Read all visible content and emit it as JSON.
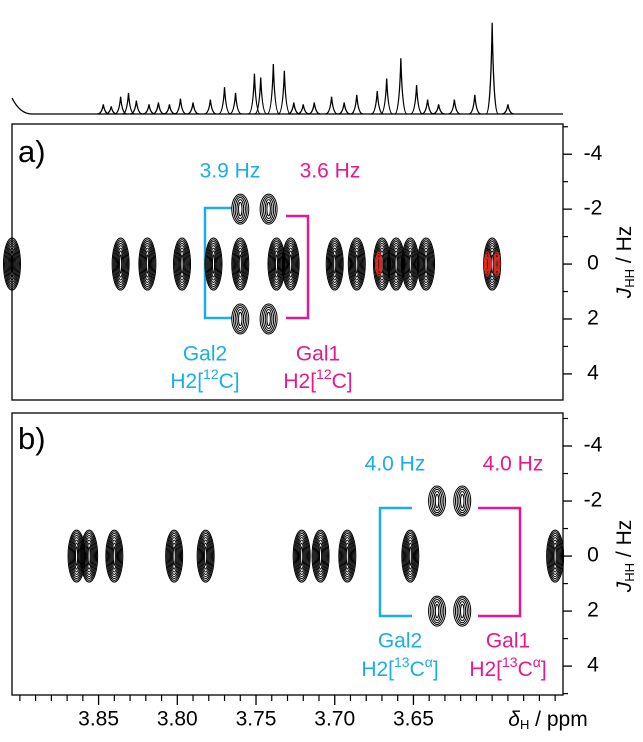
{
  "chart_data": [
    {
      "type": "spectrum",
      "x": [
        3.847,
        3.842,
        3.836,
        3.831,
        3.826,
        3.818,
        3.812,
        3.805,
        3.798,
        3.79,
        3.779,
        3.77,
        3.763,
        3.751,
        3.747,
        3.739,
        3.732,
        3.726,
        3.72,
        3.713,
        3.702,
        3.694,
        3.686,
        3.673,
        3.667,
        3.658,
        3.648,
        3.641,
        3.634,
        3.624,
        3.611,
        3.6,
        3.59
      ],
      "y": [
        10,
        8,
        18,
        22,
        14,
        10,
        12,
        10,
        16,
        12,
        15,
        28,
        22,
        42,
        38,
        52,
        45,
        12,
        10,
        12,
        18,
        12,
        20,
        24,
        37,
        58,
        30,
        15,
        10,
        15,
        20,
        95,
        10
      ],
      "ylim": [
        0,
        100
      ],
      "xlim": [
        3.905,
        3.555
      ],
      "color": "#000000"
    },
    {
      "type": "contour",
      "label": "a)",
      "xlim": [
        3.905,
        3.555
      ],
      "ylim": [
        -5.1,
        4.95
      ],
      "yticks": [
        -4,
        -2,
        0,
        2,
        4
      ],
      "yminorticks": [
        -5,
        -3,
        -1,
        1,
        3
      ],
      "ylabel": {
        "symbol": "J",
        "subscript": "HH",
        "unit": " / Hz"
      },
      "series": [
        {
          "color": "#000000",
          "x": [
            3.905,
            3.836,
            3.819,
            3.797,
            3.777,
            3.76,
            3.76,
            3.76,
            3.742,
            3.742,
            3.737,
            3.728,
            3.7,
            3.686,
            3.67,
            3.661,
            3.652,
            3.642,
            3.6
          ],
          "y": [
            0,
            0,
            0,
            0,
            0,
            -2,
            0,
            2,
            -2,
            2,
            0,
            0,
            0,
            0,
            0,
            0,
            0,
            0,
            0
          ]
        },
        {
          "color": "#e8281e",
          "x": [
            3.672,
            3.603,
            3.597
          ],
          "y": [
            0,
            0,
            0
          ]
        }
      ],
      "annotations": [
        {
          "text": "3.9 Hz",
          "color": "#1aaee8"
        },
        {
          "text": "3.6 Hz",
          "color": "#e5198b"
        },
        {
          "name": "Gal2",
          "site": "H2[",
          "isotope": "12",
          "nucleus": "C]",
          "color": "#1aaee8"
        },
        {
          "name": "Gal1",
          "site": "H2[",
          "isotope": "12",
          "nucleus": "C]",
          "color": "#e5198b"
        }
      ]
    },
    {
      "type": "contour",
      "label": "b)",
      "xlim": [
        3.905,
        3.555
      ],
      "ylim": [
        -5.2,
        5.05
      ],
      "yticks": [
        -4,
        -2,
        0,
        2,
        4
      ],
      "yminorticks": [
        -5,
        -3,
        -1,
        1,
        3,
        5
      ],
      "ylabel": {
        "symbol": "J",
        "subscript": "HH",
        "unit": " / Hz"
      },
      "xticks": [
        3.85,
        {
          "value": 3.8,
          "label": "3.80"
        },
        3.75,
        {
          "value": 3.7,
          "label": "3.70"
        },
        3.65
      ],
      "xminorticks": [
        3.9,
        3.89,
        3.88,
        3.87,
        3.86,
        3.84,
        3.83,
        3.82,
        3.81,
        3.79,
        3.78,
        3.77,
        3.76,
        3.74,
        3.73,
        3.72,
        3.71,
        3.69,
        3.68,
        3.67,
        3.66,
        3.64,
        3.63,
        3.62,
        3.61,
        3.6,
        3.59,
        3.58,
        3.57,
        3.56
      ],
      "xlabel": {
        "symbol": "δ",
        "subscript": "H",
        "unit": " / ppm"
      },
      "series": [
        {
          "color": "#000000",
          "x": [
            3.864,
            3.856,
            3.84,
            3.802,
            3.782,
            3.721,
            3.709,
            3.692,
            3.652,
            3.635,
            3.635,
            3.619,
            3.619,
            3.56
          ],
          "y": [
            0,
            0,
            0,
            0,
            0,
            0,
            0,
            0,
            0,
            -2,
            2,
            -2,
            2,
            0
          ]
        }
      ],
      "annotations": [
        {
          "text": "4.0 Hz",
          "color": "#1aaee8"
        },
        {
          "text": "4.0 Hz",
          "color": "#e5198b"
        },
        {
          "name": "Gal2",
          "site": "H2[",
          "isotope": "13",
          "nucleus": "C",
          "label": "α",
          "close": "]",
          "color": "#1aaee8"
        },
        {
          "name": "Gal1",
          "site": "H2[",
          "isotope": "13",
          "nucleus": "C",
          "label": "α",
          "close": "]",
          "color": "#e5198b"
        }
      ]
    }
  ]
}
